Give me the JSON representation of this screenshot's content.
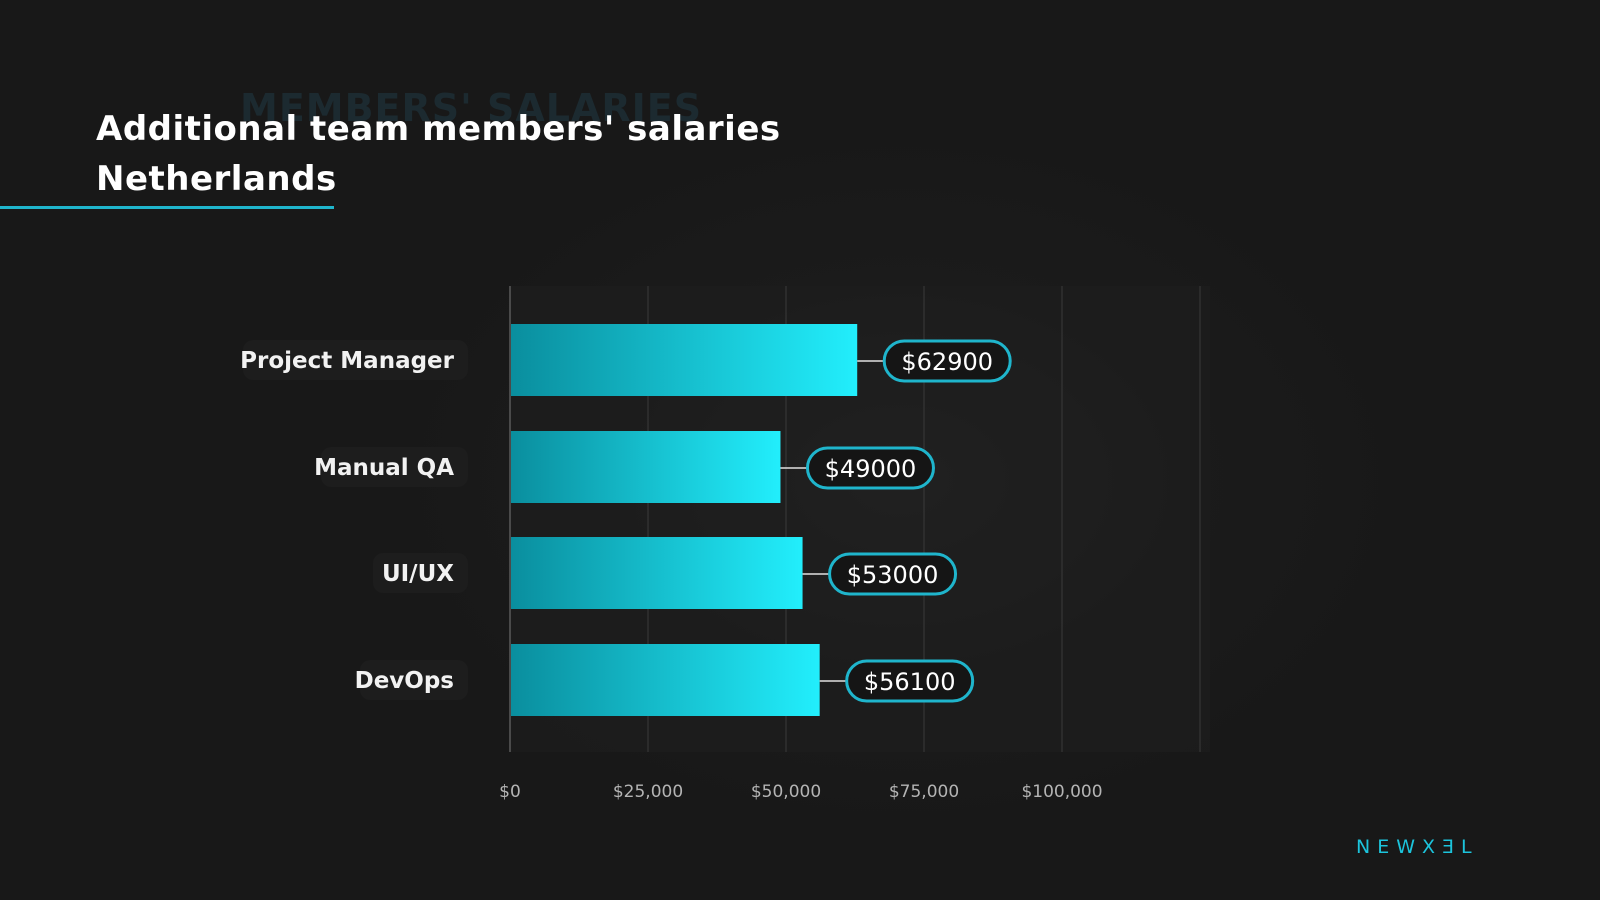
{
  "header": {
    "ghost_text": "MEMBERS' SALARIES",
    "title_line1": "Additional team members' salaries",
    "title_line2": "Netherlands"
  },
  "colors": {
    "background": "#181818",
    "bar_dark": "#0a8e9e",
    "bar_light": "#22eefc",
    "accent": "#1fb5cc"
  },
  "chart_data": {
    "type": "bar",
    "orientation": "horizontal",
    "categories": [
      "Project Manager",
      "Manual QA",
      "UI/UX",
      "DevOps"
    ],
    "values": [
      62900,
      49000,
      53000,
      56100
    ],
    "value_labels": [
      "$62900",
      "$49000",
      "$53000",
      "$56100"
    ],
    "xlim": [
      0,
      125000
    ],
    "x_ticks": [
      0,
      25000,
      50000,
      75000,
      100000
    ],
    "x_tick_labels": [
      "$0",
      "$25,000",
      "$50,000",
      "$75,000",
      "$100,000"
    ],
    "grid": true,
    "legend": "none"
  },
  "brand": {
    "logo_text": "NEWXƎL"
  }
}
